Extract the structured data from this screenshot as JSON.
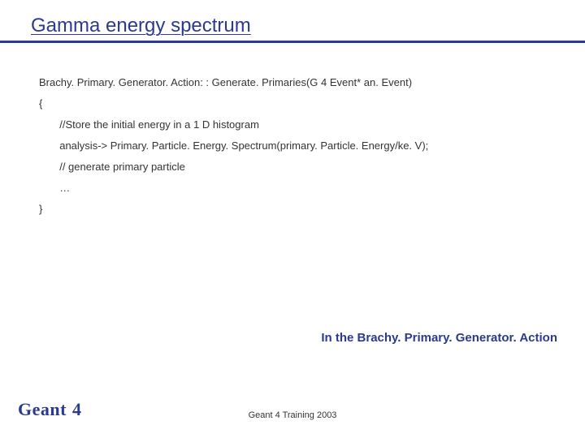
{
  "title": {
    "text": "Gamma energy spectrum",
    "color": "#2b3a8f",
    "fontsize": 24,
    "underline": true
  },
  "hr_color": "#2b3a8f",
  "code": {
    "color": "#333333",
    "fontsize": 13,
    "lines": [
      "Brachy. Primary. Generator. Action: : Generate. Primaries(G 4 Event* an. Event)",
      "{",
      "  //Store the initial energy in a 1 D histogram",
      "  analysis-> Primary. Particle. Energy. Spectrum(primary. Particle. Energy/ke. V);",
      "  // generate primary particle",
      "  …",
      "}"
    ]
  },
  "caption": {
    "text": "In the Brachy. Primary. Generator. Action",
    "color": "#2b3a8f",
    "fontsize": 15
  },
  "brand": {
    "prefix": "Geant",
    "suffix": " 4",
    "color": "#2b3a8f",
    "fontsize": 22
  },
  "footer": {
    "text": "Geant 4 Training 2003",
    "color": "#333333",
    "fontsize": 11
  },
  "background_color": "#ffffff"
}
